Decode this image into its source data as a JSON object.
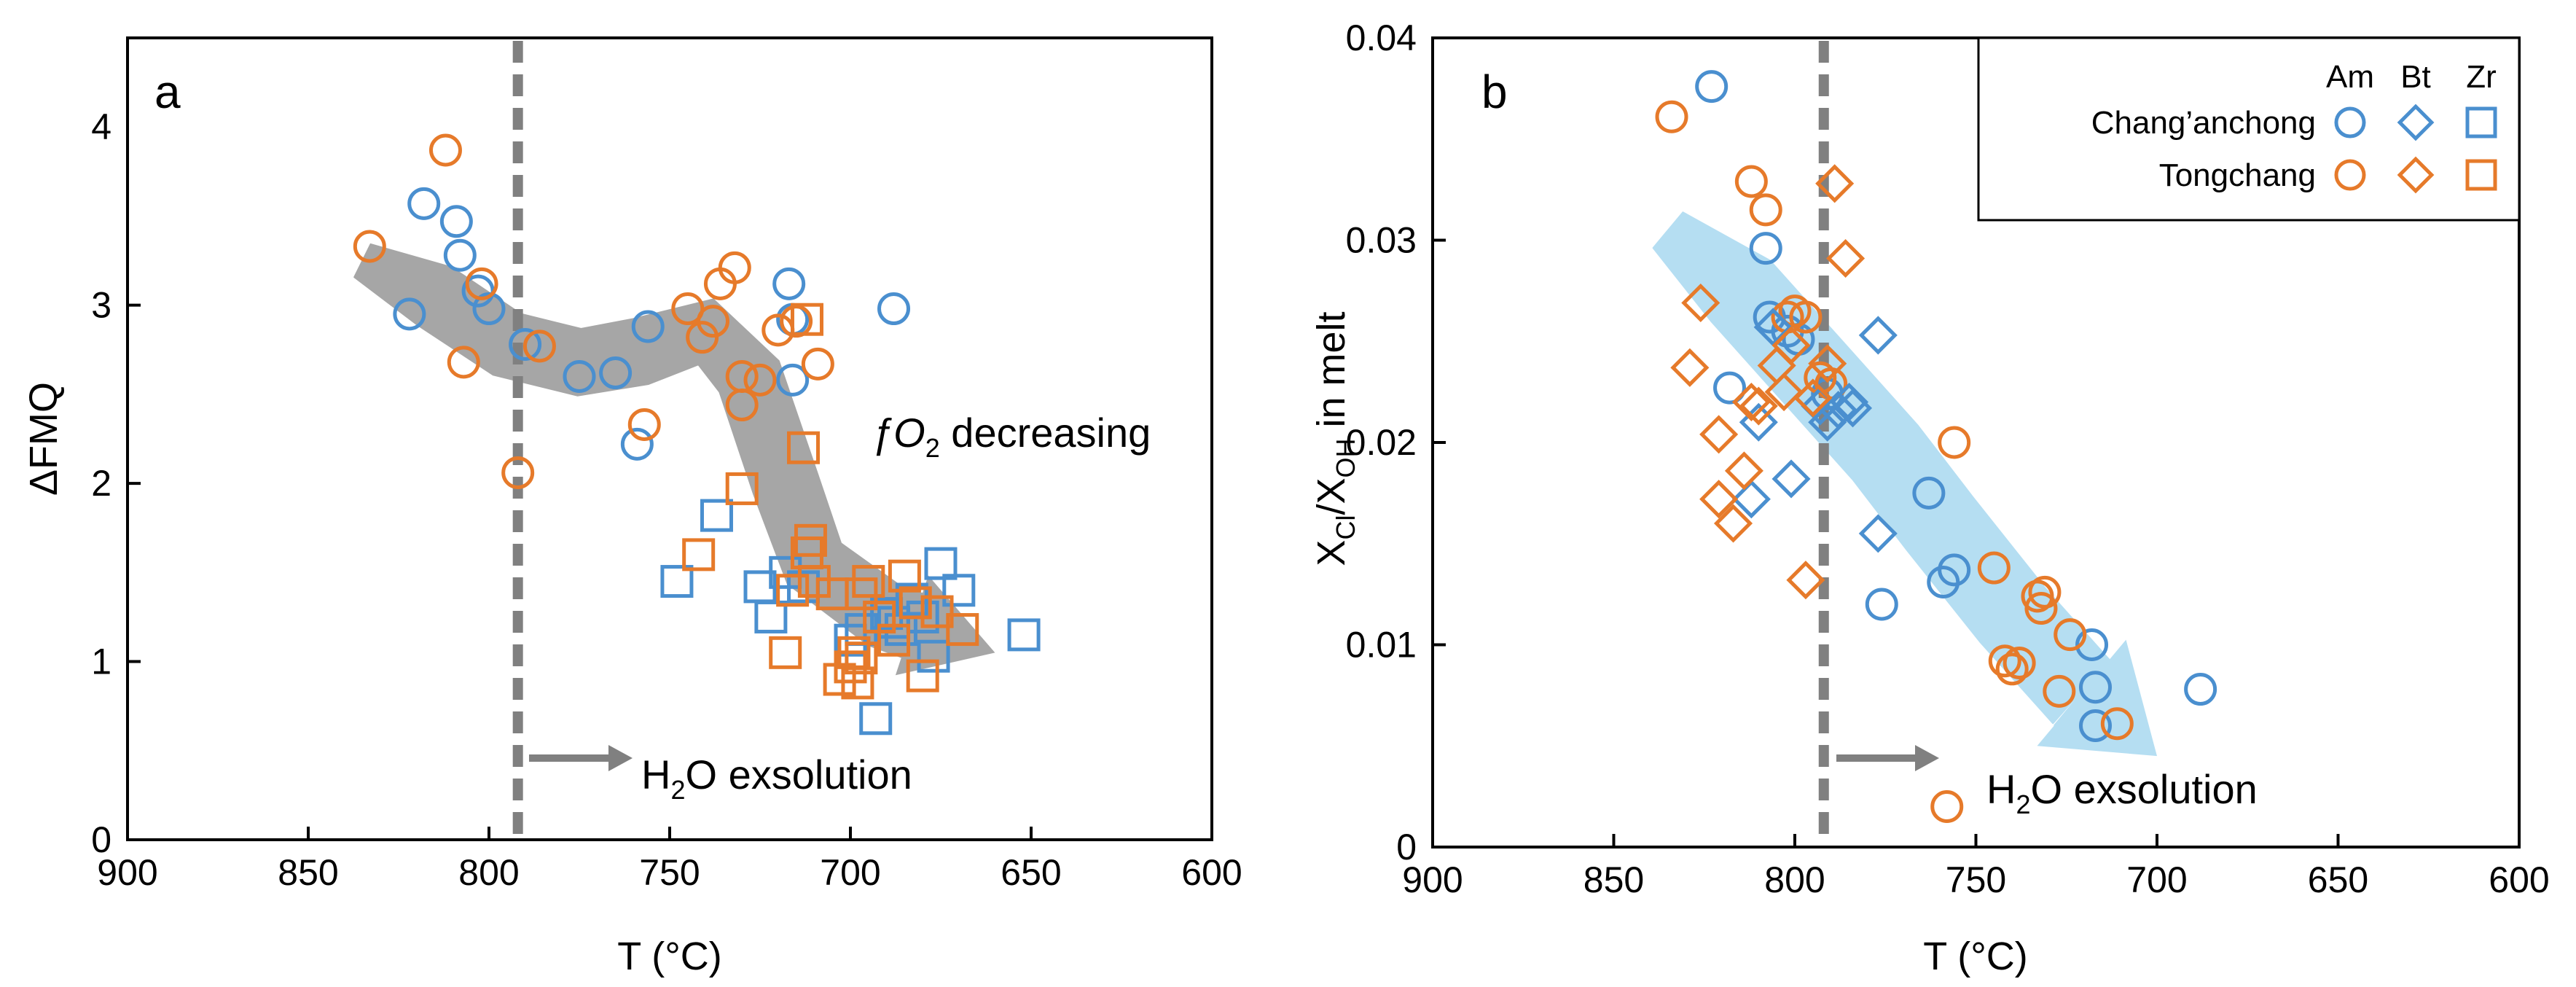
{
  "colors": {
    "blue": "#4a8fcf",
    "orange": "#e67a2a",
    "arrow_gray": "#a6a6a6",
    "arrow_blue": "#b5def2",
    "dash": "#808080",
    "axis": "#000000"
  },
  "chart_data": [
    {
      "type": "scatter",
      "panel_label": "a",
      "xlabel": "T (°C)",
      "ylabel": "ΔFMQ",
      "xlim": [
        900,
        600
      ],
      "ylim": [
        0,
        4.5
      ],
      "x_ticks": [
        900,
        850,
        800,
        750,
        700,
        650,
        600
      ],
      "y_ticks": [
        0,
        1,
        2,
        3,
        4
      ],
      "x_tick_labels": [
        "900",
        "850",
        "800",
        "750",
        "700",
        "650",
        "600"
      ],
      "y_tick_labels": [
        "0",
        "1",
        "2",
        "3",
        "4"
      ],
      "vline_x": 792,
      "annotations": {
        "fo2_prefix": "ƒO",
        "fo2_sub": "2",
        "fo2_suffix": " decreasing",
        "h2o_prefix": "H",
        "h2o_sub": "2",
        "h2o_suffix": "O exsolution"
      },
      "trend_arrow": [
        [
          835,
          3.25
        ],
        [
          815,
          3.05
        ],
        [
          795,
          2.78
        ],
        [
          775,
          2.68
        ],
        [
          758,
          2.74
        ],
        [
          740,
          2.85
        ],
        [
          728,
          2.6
        ],
        [
          718,
          2.0
        ],
        [
          710,
          1.55
        ],
        [
          690,
          1.25
        ],
        [
          660,
          1.05
        ]
      ],
      "series": [
        {
          "name": "Chang'anchong Am",
          "marker": "circle",
          "color": "blue",
          "points": [
            [
              822,
              2.95
            ],
            [
              818,
              3.57
            ],
            [
              809,
              3.47
            ],
            [
              808,
              3.28
            ],
            [
              803,
              3.08
            ],
            [
              800,
              2.98
            ],
            [
              790,
              2.78
            ],
            [
              775,
              2.6
            ],
            [
              765,
              2.62
            ],
            [
              759,
              2.22
            ],
            [
              756,
              2.88
            ],
            [
              716,
              2.58
            ],
            [
              716,
              2.92
            ],
            [
              717,
              3.12
            ],
            [
              688,
              2.98
            ]
          ]
        },
        {
          "name": "Tongchang Am",
          "marker": "circle",
          "color": "orange",
          "points": [
            [
              833,
              3.33
            ],
            [
              812,
              3.87
            ],
            [
              807,
              2.68
            ],
            [
              802,
              3.12
            ],
            [
              792,
              2.06
            ],
            [
              786,
              2.77
            ],
            [
              757,
              2.33
            ],
            [
              745,
              2.98
            ],
            [
              741,
              2.82
            ],
            [
              738,
              2.91
            ],
            [
              736,
              3.12
            ],
            [
              732,
              3.21
            ],
            [
              730,
              2.6
            ],
            [
              730,
              2.44
            ],
            [
              725,
              2.58
            ],
            [
              720,
              2.86
            ],
            [
              715,
              2.91
            ],
            [
              709,
              2.67
            ]
          ]
        },
        {
          "name": "Chang'anchong Zr",
          "marker": "square",
          "color": "blue",
          "points": [
            [
              748,
              1.45
            ],
            [
              737,
              1.82
            ],
            [
              725,
              1.42
            ],
            [
              722,
              1.25
            ],
            [
              718,
              1.5
            ],
            [
              713,
              1.42
            ],
            [
              700,
              1.12
            ],
            [
              697,
              1.18
            ],
            [
              693,
              0.68
            ],
            [
              690,
              1.27
            ],
            [
              688,
              1.22
            ],
            [
              686,
              1.18
            ],
            [
              683,
              1.35
            ],
            [
              680,
              1.25
            ],
            [
              677,
              1.03
            ],
            [
              675,
              1.55
            ],
            [
              670,
              1.4
            ],
            [
              652,
              1.15
            ]
          ]
        },
        {
          "name": "Tongchang Zr",
          "marker": "square",
          "color": "orange",
          "points": [
            [
              742,
              1.6
            ],
            [
              730,
              1.97
            ],
            [
              716,
              1.4
            ],
            [
              713,
              2.2
            ],
            [
              712,
              2.92
            ],
            [
              712,
              1.61
            ],
            [
              711,
              1.68
            ],
            [
              710,
              1.45
            ],
            [
              705,
              1.38
            ],
            [
              703,
              0.9
            ],
            [
              700,
              0.97
            ],
            [
              699,
              1.05
            ],
            [
              698,
              0.88
            ],
            [
              697,
              1.02
            ],
            [
              697,
              1.38
            ],
            [
              695,
              1.45
            ],
            [
              692,
              1.25
            ],
            [
              688,
              1.12
            ],
            [
              685,
              1.48
            ],
            [
              682,
              1.33
            ],
            [
              680,
              0.92
            ],
            [
              676,
              1.28
            ],
            [
              669,
              1.18
            ],
            [
              718,
              1.05
            ]
          ]
        }
      ]
    },
    {
      "type": "scatter",
      "panel_label": "b",
      "xlabel": "T (°C)",
      "ylabel_main": "X",
      "ylabel_sub1": "Cl",
      "ylabel_sep": "/X",
      "ylabel_sub2": "OH",
      "ylabel_tail": " in melt",
      "xlim": [
        900,
        600
      ],
      "ylim": [
        0,
        0.04
      ],
      "x_ticks": [
        900,
        850,
        800,
        750,
        700,
        650,
        600
      ],
      "y_ticks": [
        0,
        0.01,
        0.02,
        0.03,
        0.04
      ],
      "x_tick_labels": [
        "900",
        "850",
        "800",
        "750",
        "700",
        "650",
        "600"
      ],
      "y_tick_labels": [
        "0",
        "0.01",
        "0.02",
        "0.03",
        "0.04"
      ],
      "vline_x": 792,
      "annotations": {
        "h2o_prefix": "H",
        "h2o_sub": "2",
        "h2o_suffix": "O exsolution"
      },
      "legend": {
        "columns": [
          "Am",
          "Bt",
          "Zr"
        ],
        "rows": [
          {
            "label": "Chang’anchong",
            "color": "blue"
          },
          {
            "label": "Tongchang",
            "color": "orange"
          }
        ]
      },
      "trend_arrow": [
        [
          835,
          0.0305
        ],
        [
          815,
          0.0275
        ],
        [
          795,
          0.0235
        ],
        [
          775,
          0.0195
        ],
        [
          760,
          0.016
        ],
        [
          740,
          0.0115
        ],
        [
          720,
          0.0075
        ],
        [
          700,
          0.0045
        ]
      ],
      "series": [
        {
          "name": "Chang'anchong Am",
          "marker": "circle",
          "color": "blue",
          "points": [
            [
              823,
              0.0376
            ],
            [
              818,
              0.0227
            ],
            [
              808,
              0.0296
            ],
            [
              807,
              0.0262
            ],
            [
              802,
              0.0255
            ],
            [
              799,
              0.0251
            ],
            [
              791,
              0.0224
            ],
            [
              776,
              0.012
            ],
            [
              763,
              0.0175
            ],
            [
              759,
              0.0131
            ],
            [
              756,
              0.0137
            ],
            [
              718,
              0.01
            ],
            [
              717,
              0.0079
            ],
            [
              717,
              0.006
            ],
            [
              688,
              0.0078
            ]
          ]
        },
        {
          "name": "Tongchang Am",
          "marker": "circle",
          "color": "orange",
          "points": [
            [
              834,
              0.0361
            ],
            [
              812,
              0.0329
            ],
            [
              808,
              0.0315
            ],
            [
              802,
              0.0262
            ],
            [
              800,
              0.0265
            ],
            [
              797,
              0.0262
            ],
            [
              793,
              0.0232
            ],
            [
              790,
              0.0229
            ],
            [
              758,
              0.002
            ],
            [
              756,
              0.02
            ],
            [
              745,
              0.0138
            ],
            [
              742,
              0.0092
            ],
            [
              740,
              0.0088
            ],
            [
              738,
              0.0091
            ],
            [
              733,
              0.0124
            ],
            [
              732,
              0.0118
            ],
            [
              731,
              0.0126
            ],
            [
              727,
              0.0077
            ],
            [
              724,
              0.0105
            ],
            [
              711,
              0.0061
            ]
          ]
        },
        {
          "name": "Chang'anchong Bt",
          "marker": "diamond",
          "color": "blue",
          "points": [
            [
              812,
              0.0172
            ],
            [
              810,
              0.021
            ],
            [
              806,
              0.0257
            ],
            [
              801,
              0.0182
            ],
            [
              793,
              0.0218
            ],
            [
              791,
              0.021
            ],
            [
              788,
              0.0216
            ],
            [
              785,
              0.022
            ],
            [
              784,
              0.0217
            ],
            [
              777,
              0.0253
            ],
            [
              777,
              0.0155
            ]
          ]
        },
        {
          "name": "Tongchang Bt",
          "marker": "diamond",
          "color": "orange",
          "points": [
            [
              829,
              0.0237
            ],
            [
              826,
              0.0269
            ],
            [
              821,
              0.0204
            ],
            [
              821,
              0.0172
            ],
            [
              817,
              0.016
            ],
            [
              814,
              0.0186
            ],
            [
              812,
              0.022
            ],
            [
              810,
              0.0218
            ],
            [
              805,
              0.0238
            ],
            [
              803,
              0.0225
            ],
            [
              801,
              0.0248
            ],
            [
              797,
              0.0132
            ],
            [
              795,
              0.0222
            ],
            [
              791,
              0.0239
            ],
            [
              789,
              0.0328
            ],
            [
              786,
              0.0291
            ]
          ]
        },
        {
          "name": "Tongchang Zr",
          "marker": "square",
          "color": "orange",
          "points": []
        }
      ]
    }
  ]
}
